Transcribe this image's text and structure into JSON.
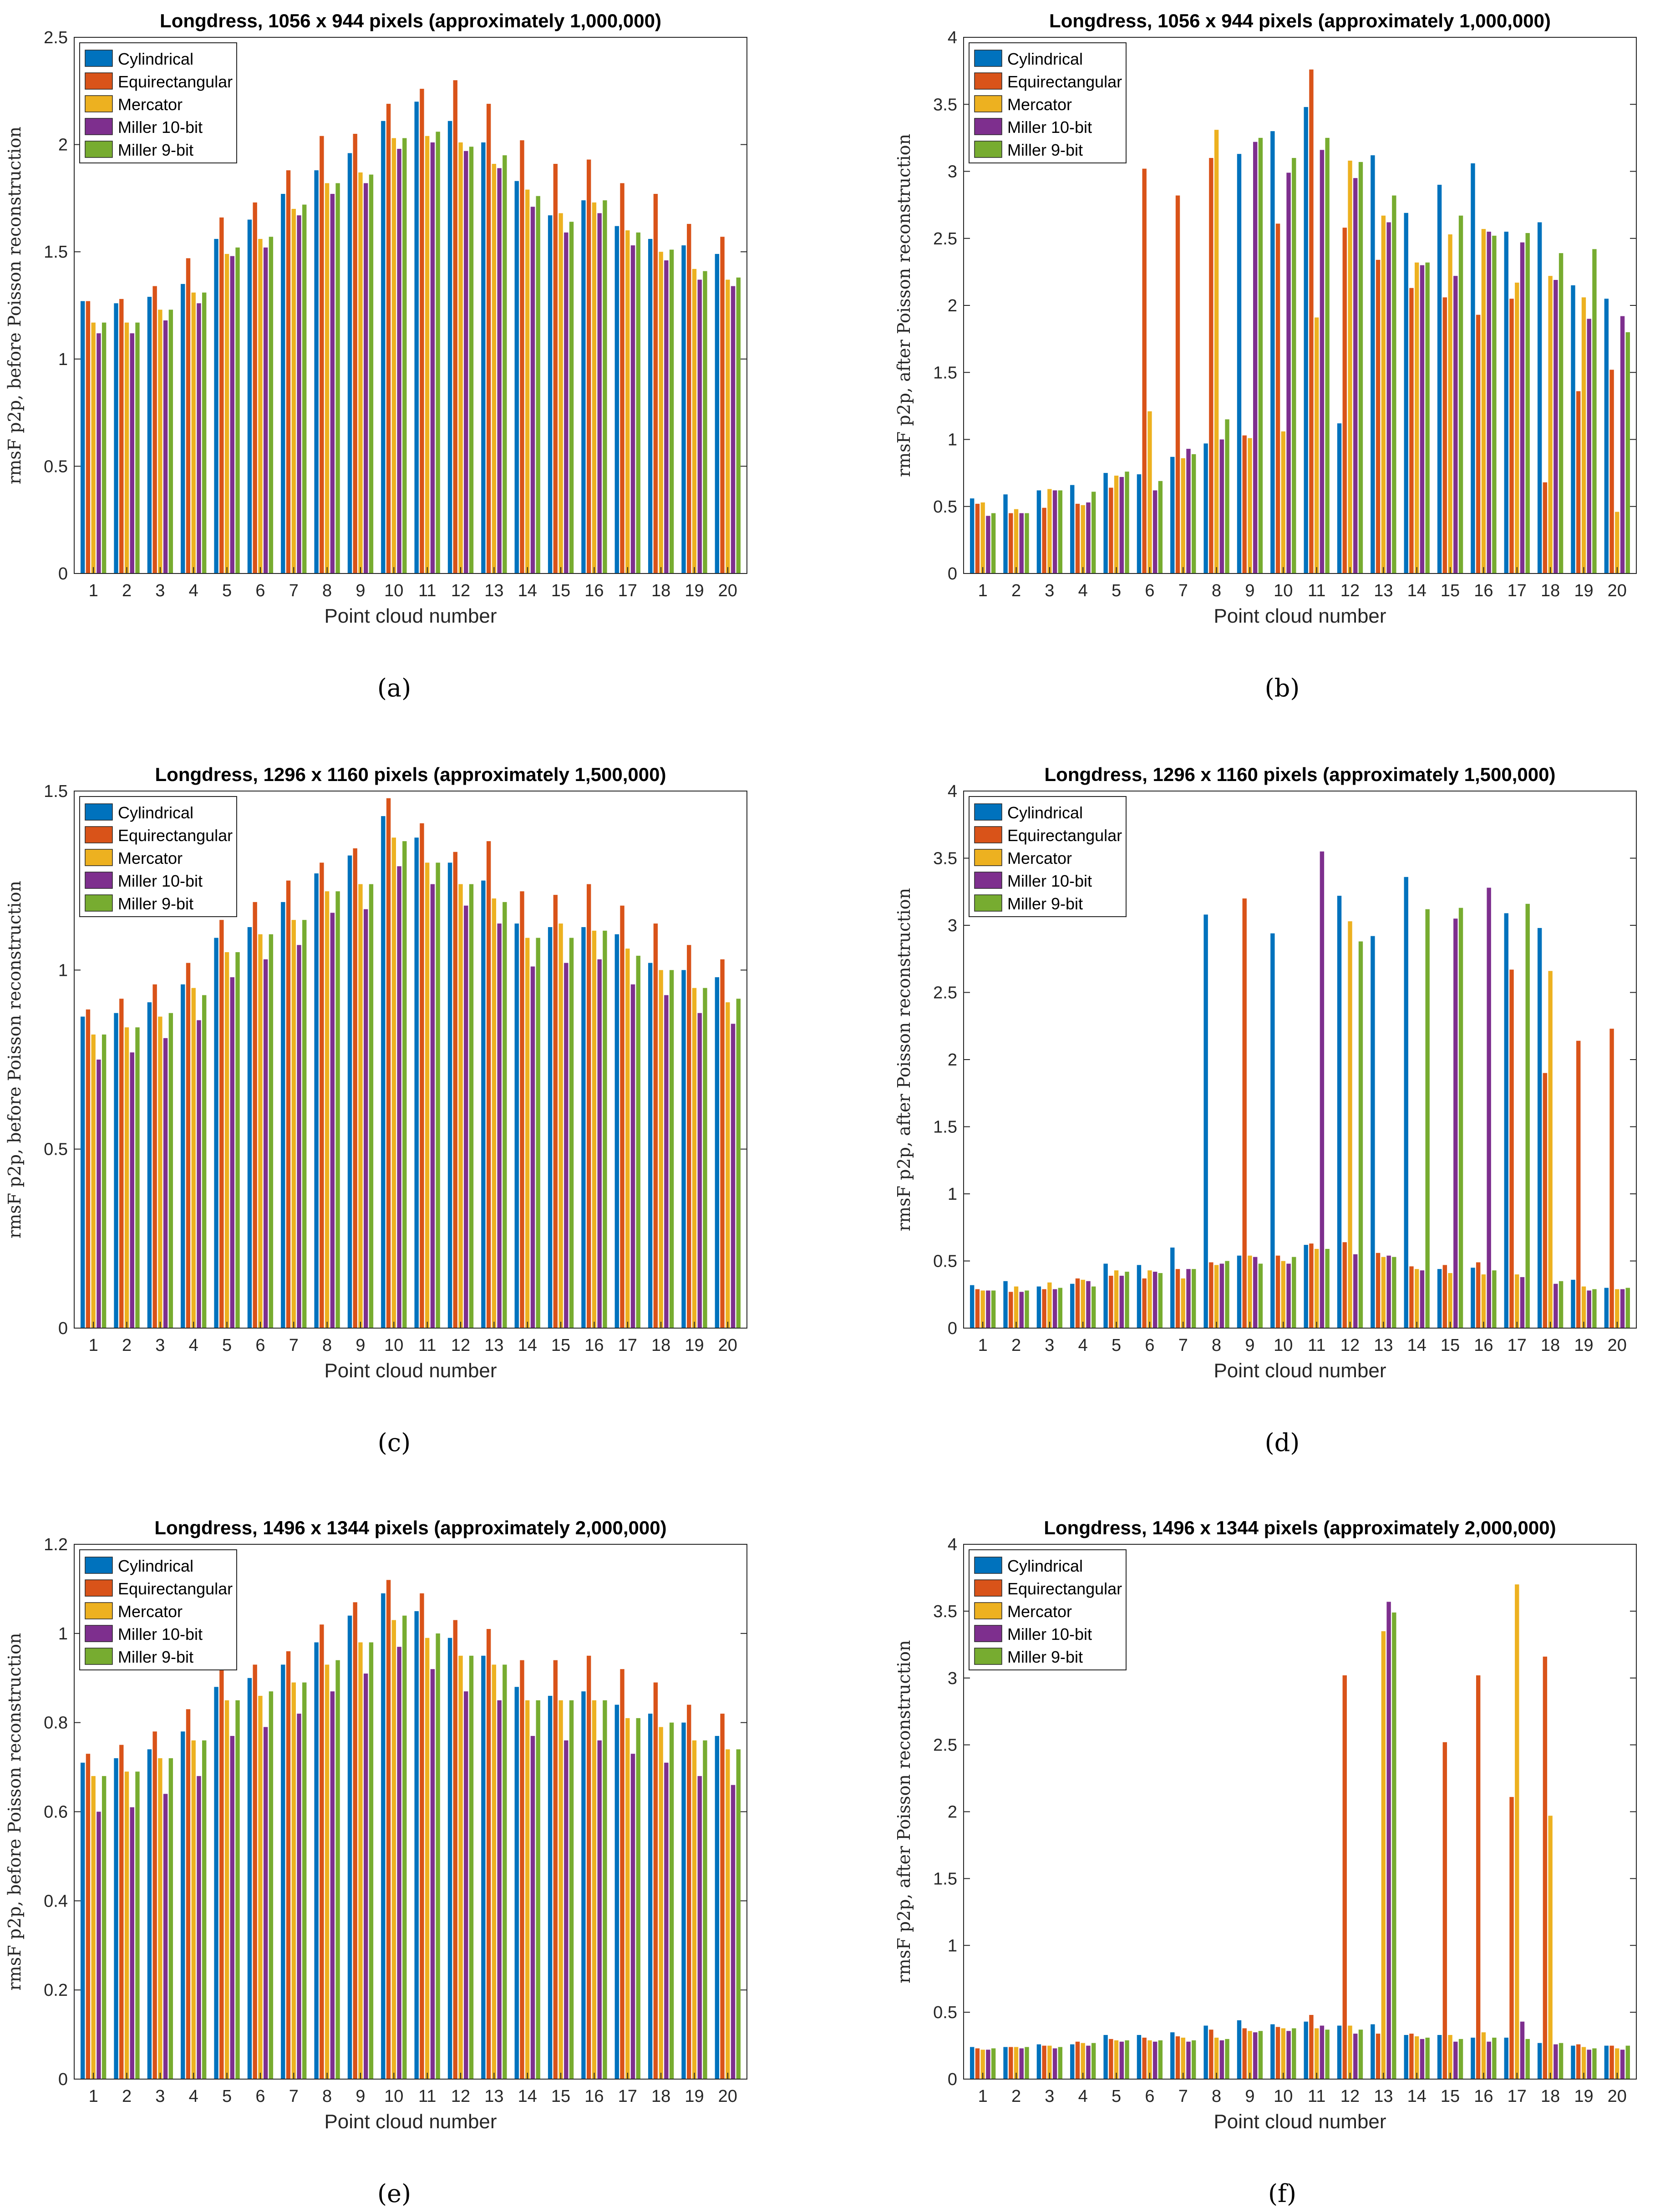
{
  "colors": {
    "Cylindrical": "#0072BD",
    "Equirectangular": "#D95319",
    "Mercator": "#EDB120",
    "Miller 10-bit": "#7E2F8E",
    "Miller 9-bit": "#77AC30"
  },
  "chart_data": [
    {
      "id": "a",
      "type": "bar",
      "title": "Longdress, 1056 x 944 pixels (approximately 1,000,000)",
      "xlabel": "Point cloud number",
      "ylabel": "rmsF p2p, before Poisson reconstruction",
      "caption": "(a)",
      "ylim": [
        0,
        2.5
      ],
      "yticks": [
        0,
        0.5,
        1,
        1.5,
        2,
        2.5
      ],
      "ytick_labels": [
        "0",
        "0.5",
        "1",
        "1.5",
        "2",
        "2.5"
      ],
      "categories": [
        "1",
        "2",
        "3",
        "4",
        "5",
        "6",
        "7",
        "8",
        "9",
        "10",
        "11",
        "12",
        "13",
        "14",
        "15",
        "16",
        "17",
        "18",
        "19",
        "20"
      ],
      "legend": [
        "Cylindrical",
        "Equirectangular",
        "Mercator",
        "Miller 10-bit",
        "Miller 9-bit"
      ],
      "series": [
        {
          "name": "Cylindrical",
          "values": [
            1.27,
            1.26,
            1.29,
            1.35,
            1.56,
            1.65,
            1.77,
            1.88,
            1.96,
            2.11,
            2.2,
            2.11,
            2.01,
            1.83,
            1.67,
            1.74,
            1.62,
            1.56,
            1.53,
            1.49
          ]
        },
        {
          "name": "Equirectangular",
          "values": [
            1.27,
            1.28,
            1.34,
            1.47,
            1.66,
            1.73,
            1.88,
            2.04,
            2.05,
            2.19,
            2.26,
            2.3,
            2.19,
            2.02,
            1.91,
            1.93,
            1.82,
            1.77,
            1.63,
            1.57
          ]
        },
        {
          "name": "Mercator",
          "values": [
            1.17,
            1.17,
            1.23,
            1.31,
            1.49,
            1.56,
            1.7,
            1.82,
            1.87,
            2.03,
            2.04,
            2.01,
            1.91,
            1.79,
            1.68,
            1.73,
            1.6,
            1.5,
            1.42,
            1.37
          ]
        },
        {
          "name": "Miller 10-bit",
          "values": [
            1.12,
            1.12,
            1.18,
            1.26,
            1.48,
            1.52,
            1.67,
            1.77,
            1.82,
            1.98,
            2.01,
            1.97,
            1.89,
            1.71,
            1.59,
            1.68,
            1.53,
            1.46,
            1.37,
            1.34
          ]
        },
        {
          "name": "Miller 9-bit",
          "values": [
            1.17,
            1.17,
            1.23,
            1.31,
            1.52,
            1.57,
            1.72,
            1.82,
            1.86,
            2.03,
            2.06,
            1.99,
            1.95,
            1.76,
            1.64,
            1.74,
            1.59,
            1.51,
            1.41,
            1.38
          ]
        }
      ]
    },
    {
      "id": "b",
      "type": "bar",
      "title": "Longdress, 1056 x 944 pixels (approximately 1,000,000)",
      "xlabel": "Point cloud number",
      "ylabel": "rmsF p2p, after Poisson reconstruction",
      "caption": "(b)",
      "ylim": [
        0,
        4
      ],
      "yticks": [
        0,
        0.5,
        1,
        1.5,
        2,
        2.5,
        3,
        3.5,
        4
      ],
      "ytick_labels": [
        "0",
        "0.5",
        "1",
        "1.5",
        "2",
        "2.5",
        "3",
        "3.5",
        "4"
      ],
      "categories": [
        "1",
        "2",
        "3",
        "4",
        "5",
        "6",
        "7",
        "8",
        "9",
        "10",
        "11",
        "12",
        "13",
        "14",
        "15",
        "16",
        "17",
        "18",
        "19",
        "20"
      ],
      "legend": [
        "Cylindrical",
        "Equirectangular",
        "Mercator",
        "Miller 10-bit",
        "Miller 9-bit"
      ],
      "series": [
        {
          "name": "Cylindrical",
          "values": [
            0.56,
            0.59,
            0.62,
            0.66,
            0.75,
            0.74,
            0.87,
            0.97,
            3.13,
            3.3,
            3.48,
            1.12,
            3.12,
            2.69,
            2.9,
            3.06,
            2.55,
            2.62,
            2.15,
            2.05
          ]
        },
        {
          "name": "Equirectangular",
          "values": [
            0.52,
            0.45,
            0.49,
            0.52,
            0.64,
            3.02,
            2.82,
            3.1,
            1.03,
            2.61,
            3.76,
            2.58,
            2.34,
            2.13,
            2.06,
            1.93,
            2.05,
            0.68,
            1.36,
            1.52
          ]
        },
        {
          "name": "Mercator",
          "values": [
            0.53,
            0.48,
            0.63,
            0.51,
            0.73,
            1.21,
            0.86,
            3.31,
            1.01,
            1.06,
            1.91,
            3.08,
            2.67,
            2.32,
            2.53,
            2.57,
            2.17,
            2.22,
            2.06,
            0.46
          ]
        },
        {
          "name": "Miller 10-bit",
          "values": [
            0.43,
            0.45,
            0.62,
            0.53,
            0.72,
            0.62,
            0.93,
            1.0,
            3.22,
            2.99,
            3.16,
            2.95,
            2.62,
            2.3,
            2.22,
            2.55,
            2.47,
            2.19,
            1.9,
            1.92
          ]
        },
        {
          "name": "Miller 9-bit",
          "values": [
            0.45,
            0.45,
            0.62,
            0.61,
            0.76,
            0.69,
            0.89,
            1.15,
            3.25,
            3.1,
            3.25,
            3.07,
            2.82,
            2.32,
            2.67,
            2.52,
            2.54,
            2.39,
            2.42,
            1.8
          ]
        }
      ]
    },
    {
      "id": "c",
      "type": "bar",
      "title": "Longdress, 1296 x 1160 pixels (approximately 1,500,000)",
      "xlabel": "Point cloud number",
      "ylabel": "rmsF p2p, before Poisson reconstruction",
      "caption": "(c)",
      "ylim": [
        0,
        1.5
      ],
      "yticks": [
        0,
        0.5,
        1,
        1.5
      ],
      "ytick_labels": [
        "0",
        "0.5",
        "1",
        "1.5"
      ],
      "categories": [
        "1",
        "2",
        "3",
        "4",
        "5",
        "6",
        "7",
        "8",
        "9",
        "10",
        "11",
        "12",
        "13",
        "14",
        "15",
        "16",
        "17",
        "18",
        "19",
        "20"
      ],
      "legend": [
        "Cylindrical",
        "Equirectangular",
        "Mercator",
        "Miller 10-bit",
        "Miller 9-bit"
      ],
      "series": [
        {
          "name": "Cylindrical",
          "values": [
            0.87,
            0.88,
            0.91,
            0.96,
            1.09,
            1.12,
            1.19,
            1.27,
            1.32,
            1.43,
            1.37,
            1.3,
            1.25,
            1.13,
            1.12,
            1.12,
            1.1,
            1.02,
            1.0,
            0.98
          ]
        },
        {
          "name": "Equirectangular",
          "values": [
            0.89,
            0.92,
            0.96,
            1.02,
            1.14,
            1.19,
            1.25,
            1.3,
            1.34,
            1.48,
            1.41,
            1.33,
            1.36,
            1.22,
            1.21,
            1.24,
            1.18,
            1.13,
            1.07,
            1.03
          ]
        },
        {
          "name": "Mercator",
          "values": [
            0.82,
            0.84,
            0.87,
            0.95,
            1.05,
            1.1,
            1.14,
            1.22,
            1.24,
            1.37,
            1.3,
            1.24,
            1.2,
            1.09,
            1.13,
            1.11,
            1.06,
            1.0,
            0.95,
            0.91
          ]
        },
        {
          "name": "Miller 10-bit",
          "values": [
            0.75,
            0.77,
            0.81,
            0.86,
            0.98,
            1.03,
            1.07,
            1.16,
            1.17,
            1.29,
            1.24,
            1.18,
            1.13,
            1.01,
            1.02,
            1.03,
            0.96,
            0.93,
            0.88,
            0.85
          ]
        },
        {
          "name": "Miller 9-bit",
          "values": [
            0.82,
            0.84,
            0.88,
            0.93,
            1.05,
            1.1,
            1.14,
            1.22,
            1.24,
            1.36,
            1.3,
            1.24,
            1.19,
            1.09,
            1.09,
            1.11,
            1.04,
            1.0,
            0.95,
            0.92
          ]
        }
      ]
    },
    {
      "id": "d",
      "type": "bar",
      "title": "Longdress, 1296 x 1160 pixels (approximately 1,500,000)",
      "xlabel": "Point cloud number",
      "ylabel": "rmsF p2p, after Poisson reconstruction",
      "caption": "(d)",
      "ylim": [
        0,
        4
      ],
      "yticks": [
        0,
        0.5,
        1,
        1.5,
        2,
        2.5,
        3,
        3.5,
        4
      ],
      "ytick_labels": [
        "0",
        "0.5",
        "1",
        "1.5",
        "2",
        "2.5",
        "3",
        "3.5",
        "4"
      ],
      "categories": [
        "1",
        "2",
        "3",
        "4",
        "5",
        "6",
        "7",
        "8",
        "9",
        "10",
        "11",
        "12",
        "13",
        "14",
        "15",
        "16",
        "17",
        "18",
        "19",
        "20"
      ],
      "legend": [
        "Cylindrical",
        "Equirectangular",
        "Mercator",
        "Miller 10-bit",
        "Miller 9-bit"
      ],
      "series": [
        {
          "name": "Cylindrical",
          "values": [
            0.32,
            0.35,
            0.31,
            0.33,
            0.48,
            0.47,
            0.6,
            3.08,
            0.54,
            2.94,
            0.62,
            3.22,
            2.92,
            3.36,
            0.44,
            0.45,
            3.09,
            2.98,
            0.36,
            0.3
          ]
        },
        {
          "name": "Equirectangular",
          "values": [
            0.29,
            0.27,
            0.29,
            0.37,
            0.39,
            0.37,
            0.44,
            0.49,
            3.2,
            0.54,
            0.63,
            0.64,
            0.56,
            0.46,
            0.47,
            0.49,
            2.67,
            1.9,
            2.14,
            2.23
          ]
        },
        {
          "name": "Mercator",
          "values": [
            0.28,
            0.31,
            0.34,
            0.36,
            0.43,
            0.43,
            0.37,
            0.47,
            0.54,
            0.5,
            0.59,
            3.03,
            0.53,
            0.44,
            0.41,
            0.4,
            0.4,
            2.66,
            0.31,
            0.29
          ]
        },
        {
          "name": "Miller 10-bit",
          "values": [
            0.28,
            0.27,
            0.29,
            0.35,
            0.39,
            0.42,
            0.44,
            0.48,
            0.53,
            0.48,
            3.55,
            0.55,
            0.54,
            0.43,
            3.05,
            3.28,
            0.38,
            0.33,
            0.28,
            0.29
          ]
        },
        {
          "name": "Miller 9-bit",
          "values": [
            0.28,
            0.28,
            0.3,
            0.31,
            0.42,
            0.41,
            0.44,
            0.5,
            0.48,
            0.53,
            0.59,
            2.88,
            0.53,
            3.12,
            3.13,
            0.43,
            3.16,
            0.35,
            0.29,
            0.3
          ]
        }
      ]
    },
    {
      "id": "e",
      "type": "bar",
      "title": "Longdress, 1496 x 1344 pixels (approximately 2,000,000)",
      "xlabel": "Point cloud number",
      "ylabel": "rmsF p2p, before Poisson reconstruction",
      "caption": "(e)",
      "ylim": [
        0,
        1.2
      ],
      "yticks": [
        0,
        0.2,
        0.4,
        0.6,
        0.8,
        1,
        1.2
      ],
      "ytick_labels": [
        "0",
        "0.2",
        "0.4",
        "0.6",
        "0.8",
        "1",
        "1.2"
      ],
      "categories": [
        "1",
        "2",
        "3",
        "4",
        "5",
        "6",
        "7",
        "8",
        "9",
        "10",
        "11",
        "12",
        "13",
        "14",
        "15",
        "16",
        "17",
        "18",
        "19",
        "20"
      ],
      "legend": [
        "Cylindrical",
        "Equirectangular",
        "Mercator",
        "Miller 10-bit",
        "Miller 9-bit"
      ],
      "series": [
        {
          "name": "Cylindrical",
          "values": [
            0.71,
            0.72,
            0.74,
            0.78,
            0.88,
            0.9,
            0.93,
            0.98,
            1.04,
            1.09,
            1.05,
            0.99,
            0.95,
            0.88,
            0.86,
            0.87,
            0.84,
            0.82,
            0.8,
            0.77
          ]
        },
        {
          "name": "Equirectangular",
          "values": [
            0.73,
            0.75,
            0.78,
            0.83,
            0.94,
            0.93,
            0.96,
            1.02,
            1.07,
            1.12,
            1.09,
            1.03,
            1.01,
            0.94,
            0.94,
            0.95,
            0.92,
            0.89,
            0.84,
            0.82
          ]
        },
        {
          "name": "Mercator",
          "values": [
            0.68,
            0.69,
            0.72,
            0.76,
            0.85,
            0.86,
            0.89,
            0.93,
            0.98,
            1.03,
            0.99,
            0.95,
            0.93,
            0.85,
            0.85,
            0.85,
            0.81,
            0.79,
            0.76,
            0.74
          ]
        },
        {
          "name": "Miller 10-bit",
          "values": [
            0.6,
            0.61,
            0.64,
            0.68,
            0.77,
            0.79,
            0.82,
            0.87,
            0.91,
            0.97,
            0.92,
            0.87,
            0.85,
            0.77,
            0.76,
            0.76,
            0.73,
            0.71,
            0.68,
            0.66
          ]
        },
        {
          "name": "Miller 9-bit",
          "values": [
            0.68,
            0.69,
            0.72,
            0.76,
            0.85,
            0.87,
            0.89,
            0.94,
            0.98,
            1.04,
            1.0,
            0.95,
            0.93,
            0.85,
            0.85,
            0.85,
            0.81,
            0.8,
            0.76,
            0.74
          ]
        }
      ]
    },
    {
      "id": "f",
      "type": "bar",
      "title": "Longdress, 1496 x 1344 pixels (approximately 2,000,000)",
      "xlabel": "Point cloud number",
      "ylabel": "rmsF p2p, after Poisson reconstruction",
      "caption": "(f)",
      "ylim": [
        0,
        4
      ],
      "yticks": [
        0,
        0.5,
        1,
        1.5,
        2,
        2.5,
        3,
        3.5,
        4
      ],
      "ytick_labels": [
        "0",
        "0.5",
        "1",
        "1.5",
        "2",
        "2.5",
        "3",
        "3.5",
        "4"
      ],
      "categories": [
        "1",
        "2",
        "3",
        "4",
        "5",
        "6",
        "7",
        "8",
        "9",
        "10",
        "11",
        "12",
        "13",
        "14",
        "15",
        "16",
        "17",
        "18",
        "19",
        "20"
      ],
      "legend": [
        "Cylindrical",
        "Equirectangular",
        "Mercator",
        "Miller 10-bit",
        "Miller 9-bit"
      ],
      "series": [
        {
          "name": "Cylindrical",
          "values": [
            0.24,
            0.24,
            0.26,
            0.26,
            0.33,
            0.33,
            0.35,
            0.4,
            0.44,
            0.41,
            0.43,
            0.4,
            0.41,
            0.33,
            0.33,
            0.31,
            0.31,
            0.27,
            0.25,
            0.25
          ]
        },
        {
          "name": "Equirectangular",
          "values": [
            0.23,
            0.24,
            0.25,
            0.28,
            0.3,
            0.31,
            0.32,
            0.37,
            0.38,
            0.39,
            0.48,
            3.02,
            0.34,
            0.34,
            2.52,
            3.02,
            2.11,
            3.16,
            0.26,
            0.25
          ]
        },
        {
          "name": "Mercator",
          "values": [
            0.22,
            0.24,
            0.25,
            0.27,
            0.29,
            0.29,
            0.31,
            0.31,
            0.36,
            0.38,
            0.38,
            0.4,
            3.35,
            0.32,
            0.33,
            0.35,
            3.7,
            1.97,
            0.24,
            0.23
          ]
        },
        {
          "name": "Miller 10-bit",
          "values": [
            0.22,
            0.23,
            0.23,
            0.25,
            0.28,
            0.28,
            0.28,
            0.29,
            0.35,
            0.36,
            0.4,
            0.34,
            3.57,
            0.3,
            0.28,
            0.28,
            0.43,
            0.26,
            0.22,
            0.22
          ]
        },
        {
          "name": "Miller 9-bit",
          "values": [
            0.23,
            0.24,
            0.24,
            0.27,
            0.29,
            0.29,
            0.29,
            0.3,
            0.36,
            0.38,
            0.37,
            0.37,
            3.49,
            0.31,
            0.3,
            0.31,
            0.3,
            0.27,
            0.23,
            0.25
          ]
        }
      ]
    }
  ]
}
